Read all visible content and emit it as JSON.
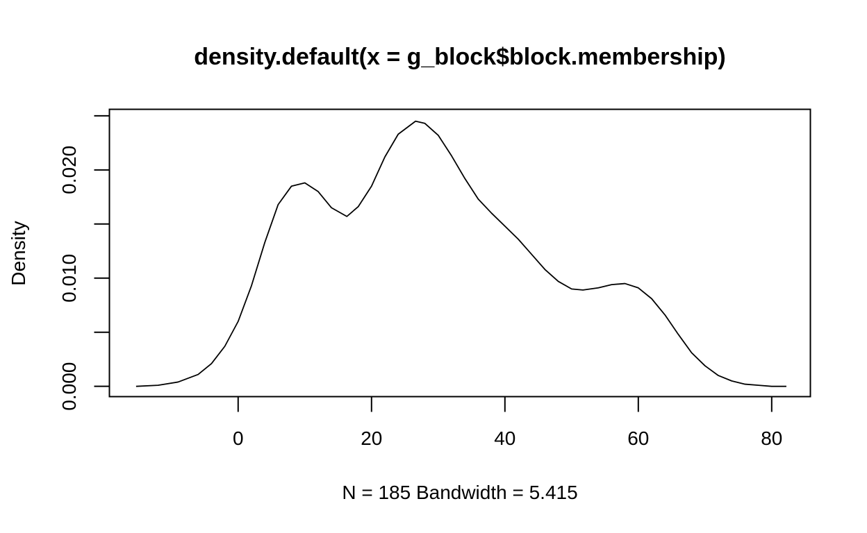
{
  "chart_data": {
    "type": "line",
    "title": "density.default(x = g_block$block.membership)",
    "xlabel": "N = 185   Bandwidth = 5.415",
    "ylabel": "Density",
    "xlim": [
      -19.3,
      85.8
    ],
    "ylim": [
      -0.00095,
      0.0256
    ],
    "x_ticks": [
      0,
      20,
      40,
      60,
      80
    ],
    "x_tick_labels": [
      "0",
      "20",
      "40",
      "60",
      "80"
    ],
    "y_ticks": [
      0,
      0.005,
      0.01,
      0.015,
      0.02,
      0.025
    ],
    "y_tick_labels": [
      "0.000",
      "",
      "0.010",
      "",
      "0.020",
      ""
    ],
    "grid": false,
    "series": [
      {
        "x": [
          -15.3,
          -12,
          -9,
          -6,
          -4,
          -2,
          0,
          2,
          4,
          6,
          8,
          10,
          12,
          14,
          16.3,
          18,
          20,
          22,
          24,
          26.6,
          28,
          30,
          32,
          34,
          36,
          38,
          40,
          42,
          44,
          46,
          48,
          50,
          51.7,
          54,
          56,
          58,
          60,
          62,
          64,
          66,
          68,
          70,
          72,
          74,
          76,
          78,
          80,
          82.2
        ],
        "y": [
          0.0,
          0.0001,
          0.0004,
          0.0011,
          0.0021,
          0.0037,
          0.006,
          0.0093,
          0.0133,
          0.0168,
          0.0185,
          0.0188,
          0.018,
          0.0165,
          0.0157,
          0.0166,
          0.0185,
          0.0212,
          0.0233,
          0.0245,
          0.0243,
          0.0232,
          0.0213,
          0.0192,
          0.0173,
          0.016,
          0.0148,
          0.0136,
          0.0122,
          0.0108,
          0.0097,
          0.009,
          0.0089,
          0.0091,
          0.0094,
          0.0095,
          0.0091,
          0.0081,
          0.0066,
          0.0048,
          0.0031,
          0.0019,
          0.001,
          0.0005,
          0.0002,
          0.0001,
          0.0,
          0.0
        ]
      }
    ]
  }
}
